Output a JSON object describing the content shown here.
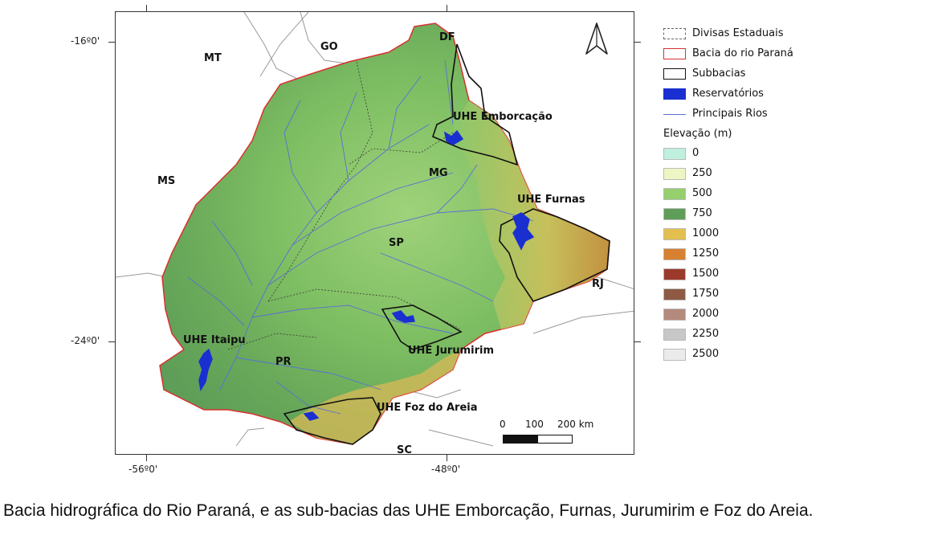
{
  "map": {
    "north_arrow": "north-arrow-icon",
    "state_labels": [
      "MT",
      "GO",
      "DF",
      "MS",
      "MG",
      "SP",
      "RJ",
      "PR",
      "SC"
    ],
    "plant_labels": [
      "UHE Emborcação",
      "UHE Furnas",
      "UHE Jurumirim",
      "UHE Itaipu",
      "UHE Foz do Areia"
    ],
    "lat_labels": [
      "-16º0'",
      "-24º0'"
    ],
    "lon_labels": [
      "-56º0'",
      "-48º0'"
    ],
    "scale": {
      "labels": [
        "0",
        "100",
        "200 km"
      ]
    }
  },
  "legend": {
    "items": [
      {
        "label": "Divisas Estaduais",
        "color": "#666666",
        "style": "dashed"
      },
      {
        "label": "Bacia do rio Paraná",
        "color": "#d93030",
        "style": "solid"
      },
      {
        "label": "Subbacias",
        "color": "#111111",
        "style": "solid"
      },
      {
        "label": "Reservatórios",
        "color": "#1a2fd0",
        "style": "fill"
      },
      {
        "label": "Principais Rios",
        "color": "#5b6fd6",
        "style": "line"
      }
    ],
    "elevation_title": "Elevação (m)",
    "elevation": [
      {
        "label": "0",
        "color": "#bff0de"
      },
      {
        "label": "250",
        "color": "#eef6c4"
      },
      {
        "label": "500",
        "color": "#96cf6d"
      },
      {
        "label": "750",
        "color": "#5e9e58"
      },
      {
        "label": "1000",
        "color": "#e3c04e"
      },
      {
        "label": "1250",
        "color": "#d7802f"
      },
      {
        "label": "1500",
        "color": "#9b3a2a"
      },
      {
        "label": "1750",
        "color": "#8e5a43"
      },
      {
        "label": "2000",
        "color": "#b48a7c"
      },
      {
        "label": "2250",
        "color": "#c7c7c7"
      },
      {
        "label": "2500",
        "color": "#ebebeb"
      }
    ]
  },
  "caption": "Bacia hidrográfica do Rio Paraná, e as sub-bacias das UHE Emborcação, Furnas, Jurumirim e Foz do Areia."
}
